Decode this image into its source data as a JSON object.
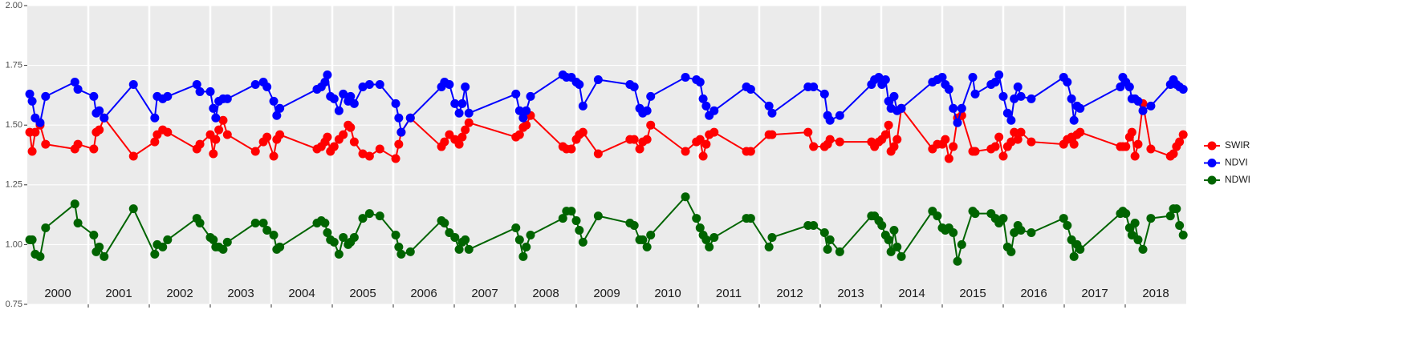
{
  "chart_data": {
    "type": "line",
    "x": [
      2000.04,
      2000.08,
      2000.13,
      2000.21,
      2000.3,
      2000.78,
      2000.83,
      2001.09,
      2001.13,
      2001.18,
      2001.26,
      2001.74,
      2002.09,
      2002.13,
      2002.22,
      2002.3,
      2002.78,
      2002.83,
      2003.0,
      2003.05,
      2003.09,
      2003.14,
      2003.21,
      2003.28,
      2003.74,
      2003.87,
      2003.93,
      2004.04,
      2004.09,
      2004.14,
      2004.75,
      2004.82,
      2004.88,
      2004.92,
      2004.97,
      2005.03,
      2005.11,
      2005.18,
      2005.26,
      2005.3,
      2005.36,
      2005.5,
      2005.61,
      2005.78,
      2006.04,
      2006.09,
      2006.13,
      2006.28,
      2006.79,
      2006.84,
      2006.92,
      2007.01,
      2007.08,
      2007.13,
      2007.18,
      2007.24,
      2008.01,
      2008.07,
      2008.13,
      2008.18,
      2008.25,
      2008.78,
      2008.84,
      2008.92,
      2009.0,
      2009.05,
      2009.11,
      2009.36,
      2009.88,
      2009.95,
      2010.04,
      2010.09,
      2010.16,
      2010.22,
      2010.79,
      2010.97,
      2011.03,
      2011.08,
      2011.13,
      2011.18,
      2011.26,
      2011.79,
      2011.86,
      2012.16,
      2012.21,
      2012.8,
      2012.89,
      2013.07,
      2013.12,
      2013.16,
      2013.32,
      2013.84,
      2013.89,
      2013.96,
      2014.01,
      2014.07,
      2014.12,
      2014.16,
      2014.21,
      2014.26,
      2014.33,
      2014.84,
      2014.92,
      2015.0,
      2015.05,
      2015.11,
      2015.18,
      2015.25,
      2015.32,
      2015.5,
      2015.54,
      2015.8,
      2015.87,
      2015.93,
      2016.0,
      2016.07,
      2016.13,
      2016.18,
      2016.24,
      2016.29,
      2016.46,
      2016.99,
      2017.05,
      2017.12,
      2017.16,
      2017.21,
      2017.26,
      2017.92,
      2017.96,
      2018.01,
      2018.07,
      2018.11,
      2018.16,
      2018.21,
      2018.29,
      2018.42,
      2018.74,
      2018.79,
      2018.84,
      2018.89,
      2018.95
    ],
    "series": [
      {
        "name": "SWIR",
        "color": "#ff0000",
        "values": [
          1.47,
          1.39,
          1.47,
          1.5,
          1.42,
          1.4,
          1.42,
          1.4,
          1.47,
          1.48,
          1.53,
          1.37,
          1.43,
          1.46,
          1.48,
          1.47,
          1.4,
          1.42,
          1.46,
          1.38,
          1.44,
          1.48,
          1.52,
          1.46,
          1.39,
          1.43,
          1.45,
          1.37,
          1.44,
          1.46,
          1.4,
          1.41,
          1.43,
          1.45,
          1.39,
          1.41,
          1.44,
          1.46,
          1.5,
          1.49,
          1.43,
          1.38,
          1.37,
          1.4,
          1.36,
          1.42,
          1.47,
          1.53,
          1.41,
          1.43,
          1.46,
          1.44,
          1.42,
          1.45,
          1.48,
          1.51,
          1.45,
          1.46,
          1.49,
          1.5,
          1.54,
          1.41,
          1.4,
          1.4,
          1.44,
          1.46,
          1.47,
          1.38,
          1.44,
          1.44,
          1.4,
          1.43,
          1.44,
          1.5,
          1.39,
          1.43,
          1.44,
          1.37,
          1.42,
          1.46,
          1.47,
          1.39,
          1.39,
          1.46,
          1.46,
          1.47,
          1.41,
          1.41,
          1.42,
          1.44,
          1.43,
          1.43,
          1.41,
          1.43,
          1.44,
          1.46,
          1.5,
          1.39,
          1.41,
          1.44,
          1.57,
          1.4,
          1.42,
          1.42,
          1.44,
          1.36,
          1.41,
          1.53,
          1.54,
          1.39,
          1.39,
          1.4,
          1.41,
          1.45,
          1.37,
          1.41,
          1.43,
          1.47,
          1.44,
          1.47,
          1.43,
          1.42,
          1.44,
          1.45,
          1.42,
          1.46,
          1.47,
          1.41,
          1.41,
          1.41,
          1.45,
          1.47,
          1.37,
          1.42,
          1.59,
          1.4,
          1.37,
          1.38,
          1.41,
          1.43,
          1.46
        ]
      },
      {
        "name": "NDVI",
        "color": "#0000ff",
        "values": [
          1.63,
          1.6,
          1.53,
          1.51,
          1.62,
          1.68,
          1.65,
          1.62,
          1.55,
          1.56,
          1.53,
          1.67,
          1.53,
          1.62,
          1.61,
          1.62,
          1.67,
          1.64,
          1.64,
          1.57,
          1.53,
          1.6,
          1.61,
          1.61,
          1.67,
          1.68,
          1.66,
          1.6,
          1.54,
          1.57,
          1.65,
          1.66,
          1.68,
          1.71,
          1.62,
          1.61,
          1.56,
          1.63,
          1.6,
          1.62,
          1.59,
          1.66,
          1.67,
          1.67,
          1.59,
          1.53,
          1.47,
          1.53,
          1.66,
          1.68,
          1.67,
          1.59,
          1.55,
          1.59,
          1.66,
          1.55,
          1.63,
          1.56,
          1.53,
          1.56,
          1.62,
          1.71,
          1.7,
          1.7,
          1.68,
          1.67,
          1.58,
          1.69,
          1.67,
          1.66,
          1.57,
          1.55,
          1.56,
          1.62,
          1.7,
          1.69,
          1.68,
          1.61,
          1.58,
          1.54,
          1.56,
          1.66,
          1.65,
          1.58,
          1.55,
          1.66,
          1.66,
          1.63,
          1.54,
          1.52,
          1.54,
          1.67,
          1.69,
          1.7,
          1.67,
          1.69,
          1.6,
          1.57,
          1.62,
          1.56,
          1.57,
          1.68,
          1.69,
          1.7,
          1.67,
          1.65,
          1.57,
          1.51,
          1.57,
          1.7,
          1.63,
          1.67,
          1.68,
          1.71,
          1.62,
          1.55,
          1.52,
          1.61,
          1.66,
          1.62,
          1.61,
          1.7,
          1.68,
          1.61,
          1.52,
          1.58,
          1.57,
          1.66,
          1.7,
          1.68,
          1.66,
          1.61,
          1.61,
          1.6,
          1.56,
          1.58,
          1.67,
          1.69,
          1.67,
          1.66,
          1.65
        ]
      },
      {
        "name": "NDWI",
        "color": "#006400",
        "values": [
          1.02,
          1.02,
          0.96,
          0.95,
          1.07,
          1.17,
          1.09,
          1.04,
          0.97,
          0.99,
          0.95,
          1.15,
          0.96,
          1.0,
          0.99,
          1.02,
          1.11,
          1.09,
          1.03,
          1.02,
          0.99,
          0.99,
          0.98,
          1.01,
          1.09,
          1.09,
          1.06,
          1.04,
          0.98,
          0.99,
          1.09,
          1.1,
          1.09,
          1.05,
          1.02,
          1.01,
          0.96,
          1.03,
          1.0,
          1.01,
          1.03,
          1.11,
          1.13,
          1.12,
          1.04,
          0.99,
          0.96,
          0.97,
          1.1,
          1.09,
          1.05,
          1.03,
          0.98,
          1.01,
          1.02,
          0.98,
          1.07,
          1.02,
          0.95,
          0.99,
          1.04,
          1.11,
          1.14,
          1.14,
          1.1,
          1.06,
          1.01,
          1.12,
          1.09,
          1.08,
          1.02,
          1.02,
          0.99,
          1.04,
          1.2,
          1.11,
          1.07,
          1.04,
          1.02,
          0.99,
          1.03,
          1.11,
          1.11,
          0.99,
          1.03,
          1.08,
          1.08,
          1.05,
          0.98,
          1.02,
          0.97,
          1.12,
          1.12,
          1.1,
          1.08,
          1.04,
          1.02,
          0.97,
          1.06,
          0.99,
          0.95,
          1.14,
          1.12,
          1.07,
          1.06,
          1.07,
          1.05,
          0.93,
          1.0,
          1.14,
          1.13,
          1.13,
          1.11,
          1.09,
          1.11,
          0.99,
          0.97,
          1.05,
          1.08,
          1.06,
          1.05,
          1.11,
          1.08,
          1.02,
          0.95,
          1.0,
          0.98,
          1.13,
          1.14,
          1.13,
          1.07,
          1.04,
          1.09,
          1.02,
          0.98,
          1.11,
          1.12,
          1.15,
          1.15,
          1.08,
          1.04
        ]
      }
    ],
    "xlim": [
      2000,
      2019
    ],
    "xticks": [
      {
        "value": 2000.5,
        "label": "2000"
      },
      {
        "value": 2001.5,
        "label": "2001"
      },
      {
        "value": 2002.5,
        "label": "2002"
      },
      {
        "value": 2003.5,
        "label": "2003"
      },
      {
        "value": 2004.5,
        "label": "2004"
      },
      {
        "value": 2005.5,
        "label": "2005"
      },
      {
        "value": 2006.5,
        "label": "2006"
      },
      {
        "value": 2007.5,
        "label": "2007"
      },
      {
        "value": 2008.5,
        "label": "2008"
      },
      {
        "value": 2009.5,
        "label": "2009"
      },
      {
        "value": 2010.5,
        "label": "2010"
      },
      {
        "value": 2011.5,
        "label": "2011"
      },
      {
        "value": 2012.5,
        "label": "2012"
      },
      {
        "value": 2013.5,
        "label": "2013"
      },
      {
        "value": 2014.5,
        "label": "2014"
      },
      {
        "value": 2015.5,
        "label": "2015"
      },
      {
        "value": 2016.5,
        "label": "2016"
      },
      {
        "value": 2017.5,
        "label": "2017"
      },
      {
        "value": 2018.5,
        "label": "2018"
      }
    ],
    "xgrid": [
      2001,
      2002,
      2003,
      2004,
      2005,
      2006,
      2007,
      2008,
      2009,
      2010,
      2011,
      2012,
      2013,
      2014,
      2015,
      2016,
      2017,
      2018
    ],
    "ylim": [
      0.75,
      2.0
    ],
    "yticks": [
      {
        "value": 0.75,
        "label": "0.75"
      },
      {
        "value": 1.0,
        "label": "1.00"
      },
      {
        "value": 1.25,
        "label": "1.25"
      },
      {
        "value": 1.5,
        "label": "1.50"
      },
      {
        "value": 1.75,
        "label": "1.75"
      },
      {
        "value": 2.0,
        "label": "2.00"
      }
    ],
    "grid": true,
    "legend": "right"
  }
}
